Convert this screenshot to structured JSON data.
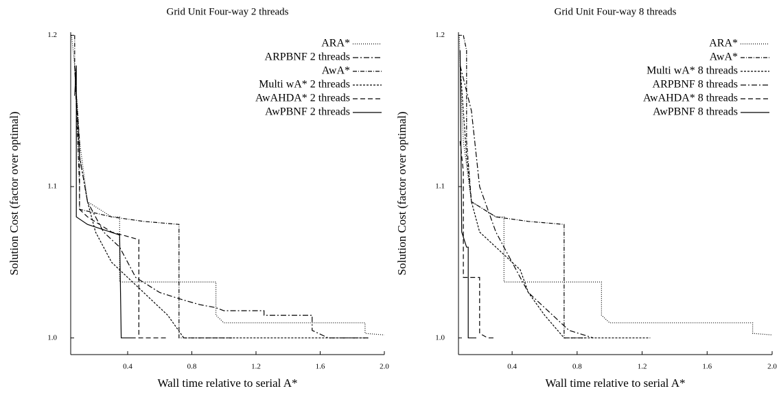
{
  "chart_data": [
    {
      "type": "line",
      "title": "Grid Unit Four-way 2 threads",
      "xlabel": "Wall time relative to serial A*",
      "ylabel": "Solution Cost (factor over optimal)",
      "xlim": [
        0.045,
        2.0
      ],
      "ylim": [
        0.989,
        1.202
      ],
      "xticks": [
        0.4,
        0.8,
        1.2,
        1.6,
        {
          "value": 2,
          "label": "2.0"
        }
      ],
      "yticks": [
        {
          "value": 1,
          "label": "1.0"
        },
        1.1,
        1.2
      ],
      "legend": "upper right",
      "series": [
        {
          "name": "ARA*",
          "color": "#000000",
          "dash": "1,2",
          "x": [
            0.05,
            0.07,
            0.1,
            0.15,
            0.3,
            0.35,
            0.35,
            0.95,
            0.95,
            1.0,
            1.88,
            1.88,
            2.0
          ],
          "values": [
            1.2,
            1.18,
            1.13,
            1.09,
            1.08,
            1.08,
            1.037,
            1.037,
            1.015,
            1.01,
            1.01,
            1.003,
            1.002
          ]
        },
        {
          "name": "ARPBNF 2 threads",
          "color": "#000000",
          "dash": "8,3,2,3",
          "x": [
            0.07,
            0.1,
            0.15,
            0.25,
            0.35,
            0.45,
            0.6,
            0.75,
            0.85,
            0.95,
            1.0,
            1.25,
            1.25,
            1.55,
            1.55,
            1.65,
            1.9
          ],
          "values": [
            1.18,
            1.12,
            1.09,
            1.07,
            1.06,
            1.04,
            1.03,
            1.025,
            1.022,
            1.02,
            1.018,
            1.018,
            1.015,
            1.015,
            1.005,
            1.0,
            1.0
          ]
        },
        {
          "name": "AwA*",
          "color": "#000000",
          "dash": "6,2,1,2",
          "x": [
            0.07,
            0.07,
            0.1,
            0.1,
            0.3,
            0.5,
            0.72,
            0.72,
            1.05
          ],
          "values": [
            1.2,
            1.18,
            1.1,
            1.085,
            1.08,
            1.077,
            1.075,
            1.0,
            1.0
          ]
        },
        {
          "name": "Multi wA* 2 threads",
          "color": "#000000",
          "dash": "3,2",
          "x": [
            0.07,
            0.1,
            0.15,
            0.2,
            0.25,
            0.3,
            0.4,
            0.5,
            0.55,
            0.65,
            0.75,
            1.9
          ],
          "values": [
            1.18,
            1.12,
            1.09,
            1.07,
            1.06,
            1.05,
            1.04,
            1.03,
            1.025,
            1.015,
            1.0,
            1.0
          ]
        },
        {
          "name": "AwAHDA* 2 threads",
          "color": "#000000",
          "dash": "7,4",
          "x": [
            0.08,
            0.1,
            0.1,
            0.15,
            0.3,
            0.47,
            0.47,
            0.65
          ],
          "values": [
            1.16,
            1.13,
            1.085,
            1.08,
            1.07,
            1.065,
            1.0,
            1.0
          ]
        },
        {
          "name": "AwPBNF 2 threads",
          "color": "#000000",
          "dash": "",
          "x": [
            0.07,
            0.08,
            0.08,
            0.15,
            0.35,
            0.36,
            0.45
          ],
          "values": [
            1.16,
            1.18,
            1.08,
            1.075,
            1.068,
            1.0,
            1.0
          ]
        }
      ]
    },
    {
      "type": "line",
      "title": "Grid Unit Four-way 8 threads",
      "xlabel": "Wall time relative to serial A*",
      "ylabel": "Solution Cost (factor over optimal)",
      "xlim": [
        0.07,
        2.0
      ],
      "ylim": [
        0.989,
        1.202
      ],
      "xticks": [
        0.4,
        0.8,
        1.2,
        1.6,
        {
          "value": 2,
          "label": "2.0"
        }
      ],
      "yticks": [
        {
          "value": 1,
          "label": "1.0"
        },
        1.1,
        1.2
      ],
      "legend": "upper right",
      "series": [
        {
          "name": "ARA*",
          "color": "#000000",
          "dash": "1,2",
          "x": [
            0.075,
            0.08,
            0.1,
            0.15,
            0.3,
            0.35,
            0.35,
            0.95,
            0.95,
            1.0,
            1.88,
            1.88,
            2.0
          ],
          "values": [
            1.2,
            1.18,
            1.13,
            1.09,
            1.08,
            1.08,
            1.037,
            1.037,
            1.015,
            1.01,
            1.01,
            1.003,
            1.002
          ]
        },
        {
          "name": "AwA*",
          "color": "#000000",
          "dash": "6,2,1,2",
          "x": [
            0.1,
            0.12,
            0.12,
            0.15,
            0.3,
            0.5,
            0.72,
            0.72,
            0.85
          ],
          "values": [
            1.2,
            1.19,
            1.13,
            1.09,
            1.08,
            1.077,
            1.075,
            1.0,
            1.0
          ]
        },
        {
          "name": "Multi wA* 8 threads",
          "color": "#000000",
          "dash": "3,2",
          "x": [
            0.08,
            0.12,
            0.15,
            0.2,
            0.3,
            0.45,
            0.5,
            0.6,
            0.72,
            1.25
          ],
          "values": [
            1.18,
            1.12,
            1.09,
            1.07,
            1.06,
            1.045,
            1.03,
            1.015,
            1.0,
            1.0
          ]
        },
        {
          "name": "ARPBNF 8 threads",
          "color": "#000000",
          "dash": "8,3,2,3",
          "x": [
            0.08,
            0.15,
            0.2,
            0.3,
            0.4,
            0.5,
            0.6,
            0.75,
            0.9
          ],
          "values": [
            1.18,
            1.15,
            1.1,
            1.07,
            1.05,
            1.03,
            1.02,
            1.005,
            1.0
          ]
        },
        {
          "name": "AwAHDA* 8 threads",
          "color": "#000000",
          "dash": "7,4",
          "x": [
            0.08,
            0.1,
            0.1,
            0.2,
            0.2,
            0.25,
            0.3
          ],
          "values": [
            1.13,
            1.11,
            1.04,
            1.04,
            1.003,
            1.0,
            1.0
          ]
        },
        {
          "name": "AwPBNF 8 threads",
          "color": "#000000",
          "dash": "",
          "x": [
            0.08,
            0.09,
            0.12,
            0.13,
            0.13,
            0.18
          ],
          "values": [
            1.19,
            1.07,
            1.06,
            1.06,
            1.0,
            1.0
          ]
        }
      ]
    }
  ]
}
